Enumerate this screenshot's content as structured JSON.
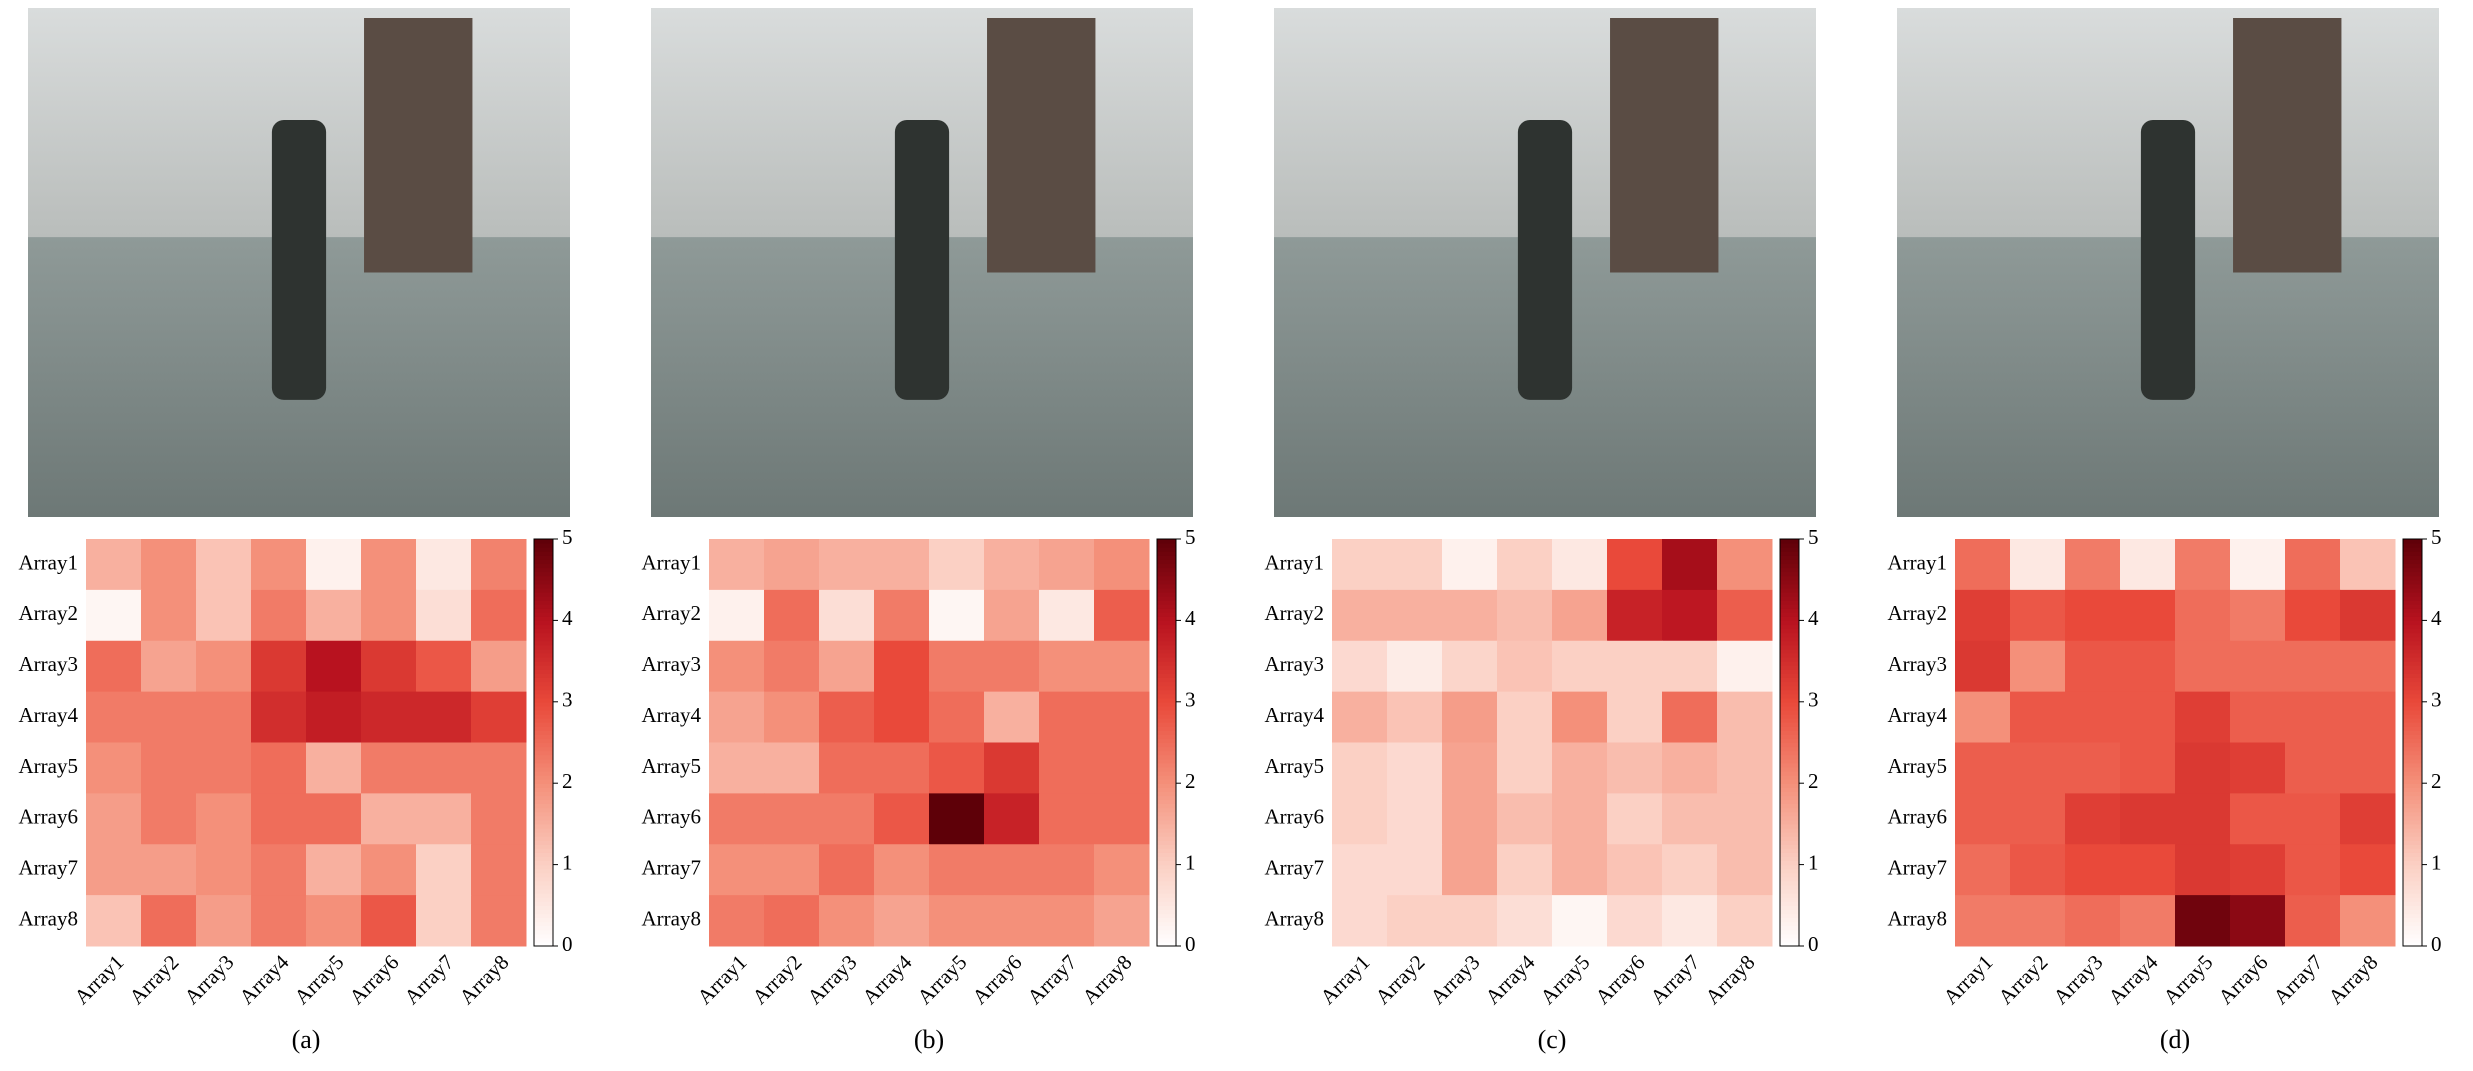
{
  "chart_data": [
    {
      "type": "heatmap",
      "caption": "(a)",
      "x_categories": [
        "Array1",
        "Array2",
        "Array3",
        "Array4",
        "Array5",
        "Array6",
        "Array7",
        "Array8"
      ],
      "y_categories": [
        "Array1",
        "Array2",
        "Array3",
        "Array4",
        "Array5",
        "Array6",
        "Array7",
        "Array8"
      ],
      "values": [
        [
          1.5,
          2,
          1.2,
          2,
          0.3,
          2,
          0.5,
          2.2
        ],
        [
          0.2,
          2,
          1.2,
          2.3,
          1.5,
          2,
          0.7,
          2.5
        ],
        [
          2.5,
          1.7,
          2,
          3.3,
          4,
          3.3,
          2.8,
          1.8
        ],
        [
          2.3,
          2.3,
          2.3,
          3.5,
          3.8,
          3.6,
          3.6,
          3.2
        ],
        [
          2,
          2.3,
          2.3,
          2.5,
          1.5,
          2.3,
          2.3,
          2.3
        ],
        [
          1.8,
          2.3,
          2,
          2.5,
          2.5,
          1.5,
          1.5,
          2.3
        ],
        [
          1.8,
          1.8,
          2,
          2.3,
          1.5,
          2,
          1,
          2.3
        ],
        [
          1.2,
          2.5,
          1.8,
          2.3,
          2,
          2.8,
          1,
          2.3
        ]
      ],
      "zlim": [
        0,
        5
      ],
      "zticks": [
        0,
        1,
        2,
        3,
        4,
        5
      ],
      "colors": [
        "#ffffff",
        "#fbd0c4",
        "#f4907a",
        "#e9493a",
        "#b8121f",
        "#5e0008"
      ]
    },
    {
      "type": "heatmap",
      "caption": "(b)",
      "x_categories": [
        "Array1",
        "Array2",
        "Array3",
        "Array4",
        "Array5",
        "Array6",
        "Array7",
        "Array8"
      ],
      "y_categories": [
        "Array1",
        "Array2",
        "Array3",
        "Array4",
        "Array5",
        "Array6",
        "Array7",
        "Array8"
      ],
      "values": [
        [
          1.5,
          1.7,
          1.5,
          1.5,
          1,
          1.5,
          1.7,
          2
        ],
        [
          0.3,
          2.5,
          0.7,
          2.3,
          0.2,
          1.7,
          0.5,
          2.7
        ],
        [
          2,
          2.3,
          1.7,
          3,
          2.3,
          2.3,
          2,
          2
        ],
        [
          1.7,
          2,
          2.7,
          3,
          2.5,
          1.5,
          2.5,
          2.5
        ],
        [
          1.5,
          1.5,
          2.5,
          2.5,
          2.8,
          3.3,
          2.5,
          2.5
        ],
        [
          2.3,
          2.3,
          2.3,
          2.8,
          5,
          3.7,
          2.5,
          2.5
        ],
        [
          2,
          2,
          2.5,
          2,
          2.3,
          2.3,
          2.3,
          2
        ],
        [
          2.3,
          2.5,
          2,
          1.7,
          2,
          2,
          2,
          1.7
        ]
      ],
      "zlim": [
        0,
        5
      ],
      "zticks": [
        0,
        1,
        2,
        3,
        4,
        5
      ],
      "colors": [
        "#ffffff",
        "#fbd0c4",
        "#f4907a",
        "#e9493a",
        "#b8121f",
        "#5e0008"
      ]
    },
    {
      "type": "heatmap",
      "caption": "(c)",
      "x_categories": [
        "Array1",
        "Array2",
        "Array3",
        "Array4",
        "Array5",
        "Array6",
        "Array7",
        "Array8"
      ],
      "y_categories": [
        "Array1",
        "Array2",
        "Array3",
        "Array4",
        "Array5",
        "Array6",
        "Array7",
        "Array8"
      ],
      "values": [
        [
          1,
          1,
          0.3,
          1,
          0.5,
          3,
          4.2,
          2
        ],
        [
          1.5,
          1.5,
          1.5,
          1.3,
          1.7,
          3.7,
          3.9,
          2.7
        ],
        [
          0.8,
          0.4,
          0.9,
          1.2,
          1,
          1,
          1,
          0.3
        ],
        [
          1.5,
          1.2,
          1.8,
          1,
          2,
          1,
          2.5,
          1.3
        ],
        [
          1,
          0.8,
          1.7,
          1,
          1.5,
          1.3,
          1.5,
          1.3
        ],
        [
          1,
          0.8,
          1.7,
          1.3,
          1.5,
          1,
          1.3,
          1.3
        ],
        [
          0.8,
          0.8,
          1.7,
          1,
          1.5,
          1.2,
          1,
          1.3
        ],
        [
          0.8,
          1,
          1,
          0.7,
          0.2,
          0.8,
          0.5,
          1
        ]
      ],
      "zlim": [
        0,
        5
      ],
      "zticks": [
        0,
        1,
        2,
        3,
        4,
        5
      ],
      "colors": [
        "#ffffff",
        "#fbd0c4",
        "#f4907a",
        "#e9493a",
        "#b8121f",
        "#5e0008"
      ]
    },
    {
      "type": "heatmap",
      "caption": "(d)",
      "x_categories": [
        "Array1",
        "Array2",
        "Array3",
        "Array4",
        "Array5",
        "Array6",
        "Array7",
        "Array8"
      ],
      "y_categories": [
        "Array1",
        "Array2",
        "Array3",
        "Array4",
        "Array5",
        "Array6",
        "Array7",
        "Array8"
      ],
      "values": [
        [
          2.5,
          0.5,
          2.3,
          0.5,
          2.3,
          0.3,
          2.5,
          1.2
        ],
        [
          3.2,
          2.8,
          3,
          3,
          2.5,
          2.3,
          3,
          3.3
        ],
        [
          3.3,
          2,
          2.8,
          2.8,
          2.5,
          2.5,
          2.5,
          2.5
        ],
        [
          2,
          2.8,
          2.8,
          2.8,
          3.2,
          2.7,
          2.7,
          2.7
        ],
        [
          2.7,
          2.7,
          2.7,
          2.8,
          3.3,
          3.2,
          2.7,
          2.7
        ],
        [
          2.7,
          2.7,
          3.2,
          3.3,
          3.3,
          2.8,
          2.8,
          3.2
        ],
        [
          2.5,
          2.8,
          3,
          3,
          3.3,
          3.2,
          2.8,
          3
        ],
        [
          2.3,
          2.3,
          2.5,
          2.3,
          4.8,
          4.5,
          2.7,
          2
        ]
      ],
      "zlim": [
        0,
        5
      ],
      "zticks": [
        0,
        1,
        2,
        3,
        4,
        5
      ],
      "colors": [
        "#ffffff",
        "#fbd0c4",
        "#f4907a",
        "#e9493a",
        "#b8121f",
        "#5e0008"
      ]
    }
  ]
}
